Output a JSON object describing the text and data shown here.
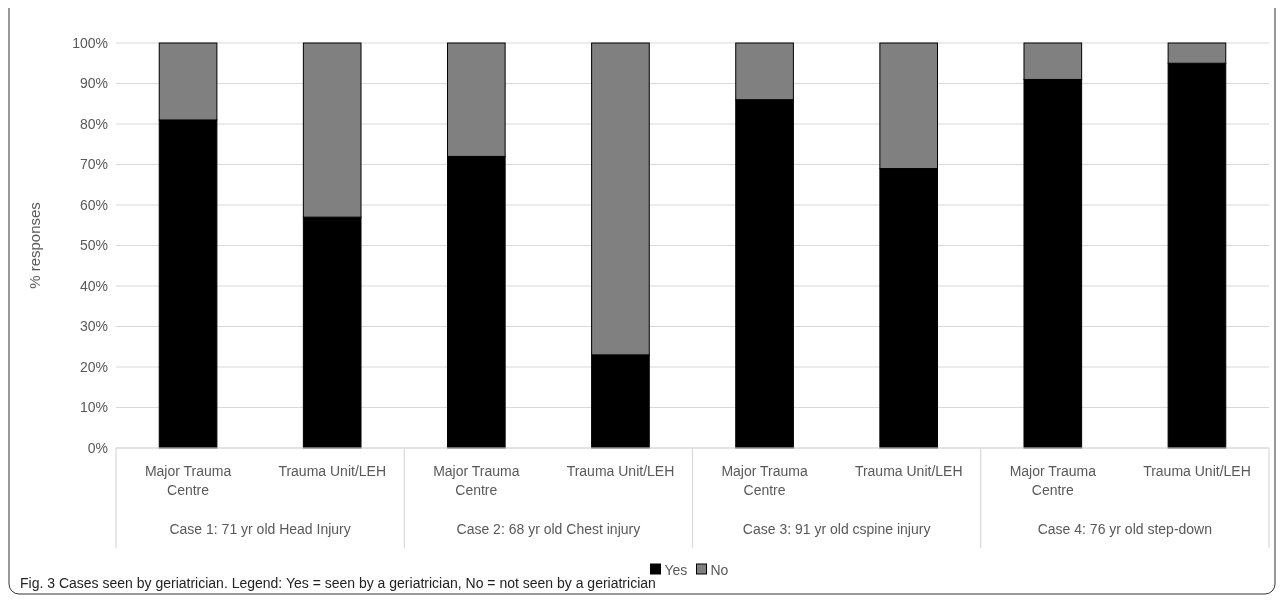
{
  "chart_data": {
    "type": "bar",
    "stacked": true,
    "title": "Fig. 3  Cases seen by geriatrician. Legend: Yes = seen by a geriatrician, No = not seen by a geriatrician",
    "ylabel": "% responses",
    "categories": [
      "Major Trauma Centre",
      "Trauma Unit/LEH",
      "Major Trauma Centre",
      "Trauma Unit/LEH",
      "Major Trauma Centre",
      "Trauma Unit/LEH",
      "Major Trauma Centre",
      "Trauma Unit/LEH"
    ],
    "series": [
      {
        "name": "Yes",
        "color": "#000000",
        "values": [
          81,
          57,
          72,
          23,
          86,
          69,
          91,
          95
        ]
      },
      {
        "name": "No",
        "color": "#808080",
        "values": [
          19,
          43,
          28,
          77,
          14,
          31,
          9,
          5
        ]
      }
    ],
    "annotations": [
      "Case 1: 71 yr old Head Injury",
      "Case 2: 68 yr old Chest injury",
      "Case 3: 91 yr old cspine injury",
      "Case 4: 76 yr old step-down"
    ],
    "ylim": [
      0,
      100
    ],
    "yticks": [
      {
        "value": 0,
        "label": "0%"
      },
      {
        "value": 10,
        "label": "10%"
      },
      {
        "value": 20,
        "label": "20%"
      },
      {
        "value": 30,
        "label": "30%"
      },
      {
        "value": 40,
        "label": "40%"
      },
      {
        "value": 50,
        "label": "50%"
      },
      {
        "value": 60,
        "label": "60%"
      },
      {
        "value": 70,
        "label": "70%"
      },
      {
        "value": 80,
        "label": "80%"
      },
      {
        "value": 90,
        "label": "90%"
      },
      {
        "value": 100,
        "label": "100%"
      }
    ],
    "grid": "y",
    "legend": "bottom"
  }
}
